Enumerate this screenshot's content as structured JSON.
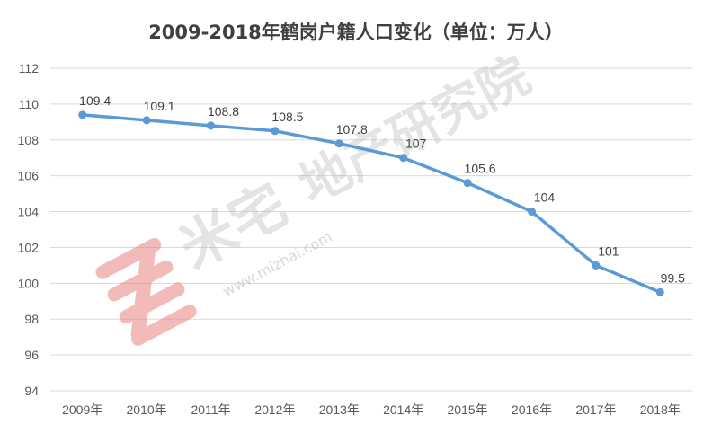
{
  "chart_data": {
    "type": "line",
    "title": "2009-2018年鹤岗户籍人口变化（单位：万人）",
    "categories": [
      "2009年",
      "2010年",
      "2011年",
      "2012年",
      "2013年",
      "2014年",
      "2015年",
      "2016年",
      "2017年",
      "2018年"
    ],
    "values": [
      109.4,
      109.1,
      108.8,
      108.5,
      107.8,
      107,
      105.6,
      104,
      101,
      99.5
    ],
    "data_labels": [
      "109.4",
      "109.1",
      "108.8",
      "108.5",
      "107.8",
      "107",
      "105.6",
      "104",
      "101",
      "99.5"
    ],
    "ylim": [
      94,
      112
    ],
    "yticks": [
      94,
      96,
      98,
      100,
      102,
      104,
      106,
      108,
      110,
      112
    ],
    "xlabel": "",
    "ylabel": "",
    "grid": true,
    "legend": "none",
    "color": "#5b9bd5"
  },
  "watermark": {
    "brand": "米宅",
    "sub": "地产研究院",
    "url": "www.mizhai.com",
    "logo_color": "#e8837f"
  }
}
